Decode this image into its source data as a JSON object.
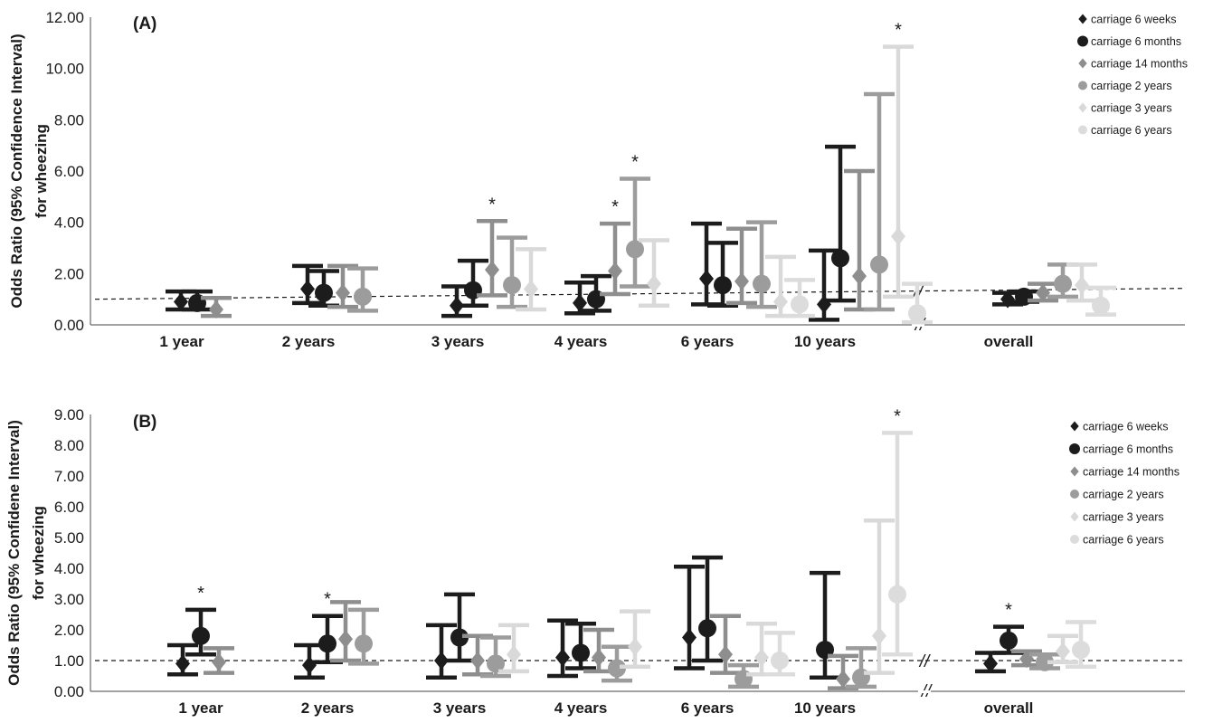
{
  "chart_data": [
    {
      "type": "scatter",
      "panel_label": "(A)",
      "ylabel_line1": "Odds Ratio (95% Confidence Interval)",
      "ylabel_line2": "for wheezing",
      "ylim": [
        0,
        12
      ],
      "yticks": [
        "0.00",
        "2.00",
        "4.00",
        "6.00",
        "8.00",
        "10.00",
        "12.00"
      ],
      "categories": [
        "1 year",
        "2 years",
        "3 years",
        "4 years",
        "6 years",
        "10 years",
        "overall"
      ],
      "legend": [
        "carriage 6 weeks",
        "carriage 6 months",
        "carriage 14 months",
        "carriage 2 years",
        "carriage 3 years",
        "carriage 6 years"
      ],
      "legend_position": "right",
      "reference_line": 1,
      "axis_break_marks": "//",
      "series": [
        {
          "name": "carriage 6 weeks",
          "values": [
            0.9,
            1.4,
            0.75,
            0.85,
            1.8,
            0.8,
            1.0
          ],
          "lower": [
            0.6,
            0.85,
            0.35,
            0.45,
            0.8,
            0.2,
            0.8
          ],
          "upper": [
            1.3,
            2.3,
            1.5,
            1.65,
            3.95,
            2.9,
            1.25
          ],
          "stars": [
            false,
            false,
            false,
            false,
            false,
            false,
            false
          ]
        },
        {
          "name": "carriage 6 months",
          "values": [
            0.85,
            1.25,
            1.35,
            1.0,
            1.55,
            2.6,
            1.1
          ],
          "lower": [
            0.6,
            0.75,
            0.75,
            0.55,
            0.75,
            0.95,
            0.9
          ],
          "upper": [
            1.3,
            2.1,
            2.5,
            1.9,
            3.2,
            6.95,
            1.3
          ],
          "stars": [
            false,
            false,
            false,
            false,
            false,
            false,
            false
          ]
        },
        {
          "name": "carriage 14 months",
          "values": [
            0.6,
            1.25,
            2.15,
            2.1,
            1.7,
            1.9,
            1.25
          ],
          "lower": [
            0.35,
            0.7,
            1.15,
            1.2,
            0.85,
            0.6,
            0.95
          ],
          "upper": [
            1.05,
            2.3,
            4.05,
            3.95,
            3.75,
            6.0,
            1.6
          ],
          "stars": [
            false,
            false,
            true,
            true,
            false,
            false,
            false
          ]
        },
        {
          "name": "carriage 2 years",
          "values": [
            null,
            1.1,
            1.55,
            2.95,
            1.6,
            2.35,
            1.6
          ],
          "lower": [
            null,
            0.55,
            0.7,
            1.5,
            0.7,
            0.6,
            1.1
          ],
          "upper": [
            null,
            2.2,
            3.4,
            5.7,
            4.0,
            9.0,
            2.35
          ],
          "stars": [
            false,
            false,
            false,
            true,
            false,
            false,
            false
          ]
        },
        {
          "name": "carriage 3 years",
          "values": [
            null,
            null,
            1.4,
            1.6,
            0.9,
            3.45,
            1.55
          ],
          "lower": [
            null,
            null,
            0.6,
            0.75,
            0.35,
            1.1,
            0.95
          ],
          "upper": [
            null,
            null,
            2.95,
            3.3,
            2.65,
            10.85,
            2.35
          ],
          "stars": [
            false,
            false,
            false,
            false,
            false,
            true,
            false
          ]
        },
        {
          "name": "carriage 6 years",
          "values": [
            null,
            null,
            null,
            null,
            0.8,
            0.45,
            0.75
          ],
          "lower": [
            null,
            null,
            null,
            null,
            0.35,
            0.1,
            0.4
          ],
          "upper": [
            null,
            null,
            null,
            null,
            1.75,
            1.6,
            1.45
          ],
          "stars": [
            false,
            false,
            false,
            false,
            false,
            false,
            false
          ]
        }
      ]
    },
    {
      "type": "scatter",
      "panel_label": "(B)",
      "ylabel_line1": "Odds Ratio (95% Confidene Interval)",
      "ylabel_line2": "for wheezing",
      "ylim": [
        0,
        9
      ],
      "yticks": [
        "0.00",
        "1.00",
        "2.00",
        "3.00",
        "4.00",
        "5.00",
        "6.00",
        "7.00",
        "8.00",
        "9.00"
      ],
      "categories": [
        "1 year",
        "2 years",
        "3 years",
        "4 years",
        "6 years",
        "10 years",
        "overall"
      ],
      "legend": [
        "carriage 6 weeks",
        "carriage 6 months",
        "carriage 14 months",
        "carriage 2 years",
        "carriage 3 years",
        "carriage 6 years"
      ],
      "legend_position": "right",
      "reference_line": 1,
      "axis_break_marks": "//",
      "series": [
        {
          "name": "carriage 6 weeks",
          "values": [
            0.9,
            0.85,
            1.0,
            1.1,
            1.75,
            null,
            0.9
          ],
          "lower": [
            0.55,
            0.45,
            0.45,
            0.5,
            0.75,
            null,
            0.65
          ],
          "upper": [
            1.5,
            1.5,
            2.15,
            2.3,
            4.05,
            null,
            1.25
          ],
          "stars": [
            false,
            false,
            false,
            false,
            false,
            false,
            false
          ]
        },
        {
          "name": "carriage 6 months",
          "values": [
            1.8,
            1.55,
            1.75,
            1.25,
            2.05,
            1.35,
            1.65
          ],
          "lower": [
            1.2,
            0.95,
            1.0,
            0.75,
            1.0,
            0.45,
            1.25
          ],
          "upper": [
            2.65,
            2.45,
            3.15,
            2.2,
            4.35,
            3.85,
            2.1
          ],
          "stars": [
            true,
            true,
            false,
            false,
            false,
            false,
            true
          ]
        },
        {
          "name": "carriage 14 months",
          "values": [
            0.95,
            1.7,
            1.0,
            1.1,
            1.2,
            0.4,
            1.05
          ],
          "lower": [
            0.6,
            1.0,
            0.55,
            0.65,
            0.6,
            0.1,
            0.85
          ],
          "upper": [
            1.4,
            2.9,
            1.8,
            2.0,
            2.45,
            1.15,
            1.3
          ],
          "stars": [
            false,
            false,
            false,
            false,
            false,
            false,
            false
          ]
        },
        {
          "name": "carriage 2 years",
          "values": [
            null,
            1.55,
            0.9,
            0.75,
            0.4,
            0.45,
            0.95
          ],
          "lower": [
            null,
            0.9,
            0.5,
            0.35,
            0.15,
            0.15,
            0.75
          ],
          "upper": [
            null,
            2.65,
            1.75,
            1.45,
            0.85,
            1.4,
            1.2
          ],
          "stars": [
            false,
            false,
            false,
            false,
            false,
            false,
            false
          ]
        },
        {
          "name": "carriage 3 years",
          "values": [
            null,
            null,
            1.2,
            1.45,
            1.1,
            1.8,
            1.3
          ],
          "lower": [
            null,
            null,
            0.65,
            0.8,
            0.55,
            0.6,
            0.95
          ],
          "upper": [
            null,
            null,
            2.15,
            2.6,
            2.2,
            5.55,
            1.8
          ],
          "stars": [
            false,
            false,
            false,
            false,
            false,
            false,
            false
          ]
        },
        {
          "name": "carriage 6 years",
          "values": [
            null,
            null,
            null,
            null,
            1.0,
            3.15,
            1.35
          ],
          "lower": [
            null,
            null,
            null,
            null,
            0.55,
            1.2,
            0.8
          ],
          "upper": [
            null,
            null,
            null,
            null,
            1.9,
            8.4,
            2.25
          ],
          "stars": [
            false,
            false,
            false,
            false,
            false,
            true,
            false
          ]
        }
      ]
    }
  ],
  "series_colors": [
    "#1c1c1c",
    "#1c1c1c",
    "#8e8e8e",
    "#9c9c9c",
    "#d9d9d9",
    "#dcdcdc"
  ],
  "series_markers": [
    "diamond",
    "circle",
    "diamond",
    "circle",
    "diamond",
    "circle"
  ],
  "star_symbol": "*"
}
